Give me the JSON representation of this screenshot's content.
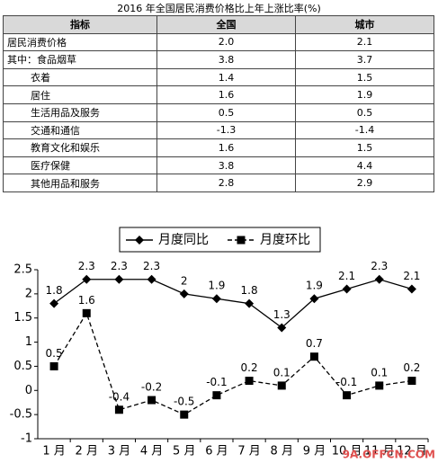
{
  "title": "2016 年全国居民消费价格比上年上涨比率(%)",
  "table": {
    "header": [
      "指标",
      "全国",
      "城市"
    ],
    "rows": [
      [
        "居民消费价格",
        "2.0",
        "2.1"
      ],
      [
        "其中：食品烟草",
        "3.8",
        "3.7"
      ],
      [
        "衣着",
        "1.4",
        "1.5"
      ],
      [
        "居住",
        "1.6",
        "1.9"
      ],
      [
        "生活用品及服务",
        "0.5",
        "0.5"
      ],
      [
        "交通和通信",
        "-1.3",
        "-1.4"
      ],
      [
        "教育文化和娱乐",
        "1.6",
        "1.5"
      ],
      [
        "医疗保健",
        "3.8",
        "4.4"
      ],
      [
        "其他用品和服务",
        "2.8",
        "2.9"
      ]
    ]
  },
  "chart_data": {
    "type": "line",
    "categories": [
      "1 月",
      "2 月",
      "3 月",
      "4 月",
      "5 月",
      "6 月",
      "7 月",
      "8 月",
      "9 月",
      "10 月",
      "11 月",
      "12 月"
    ],
    "series": [
      {
        "name": "月度同比",
        "color": "#000000",
        "marker": "diamond",
        "dashed": false,
        "values": [
          1.8,
          2.3,
          2.3,
          2.3,
          2,
          1.9,
          1.8,
          1.3,
          1.9,
          2.1,
          2.3,
          2.1
        ]
      },
      {
        "name": "月度环比",
        "color": "#000000",
        "marker": "square",
        "dashed": true,
        "values": [
          0.5,
          1.6,
          -0.4,
          -0.2,
          -0.5,
          -0.1,
          0.2,
          0.1,
          0.7,
          -0.1,
          0.1,
          0.2
        ]
      }
    ],
    "ylim": [
      -1,
      2.5
    ],
    "yticks": [
      -1,
      -0.5,
      0,
      0.5,
      1,
      1.5,
      2,
      2.5
    ],
    "grid": false,
    "legend": "top",
    "watermark": "9A.OFFCN.COM"
  }
}
